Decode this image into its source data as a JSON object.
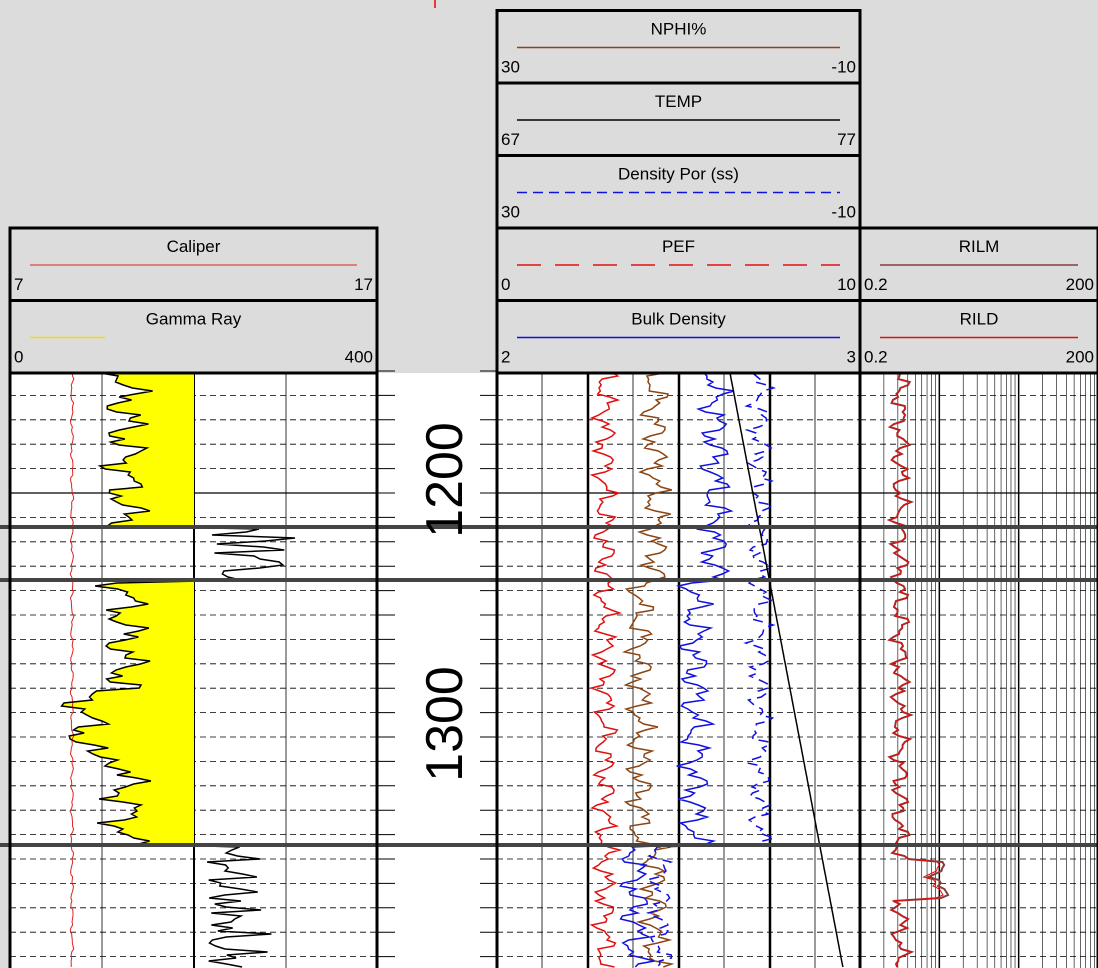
{
  "tracks": [
    {
      "headers": [
        {
          "name": "Caliper",
          "left": "7",
          "right": "17"
        },
        {
          "name": "Gamma Ray",
          "left": "0",
          "right": "400"
        }
      ]
    },
    {
      "headers": [
        {
          "name": "NPHI%",
          "left": "30",
          "right": "-10"
        },
        {
          "name": "TEMP",
          "left": "67",
          "right": "77"
        },
        {
          "name": "Density Por (ss)",
          "left": "30",
          "right": "-10"
        },
        {
          "name": "PEF",
          "left": "0",
          "right": "10"
        },
        {
          "name": "Bulk Density",
          "left": "2",
          "right": "3"
        }
      ]
    },
    {
      "headers": [
        {
          "name": "RILM",
          "left": "0.2",
          "right": "200"
        },
        {
          "name": "RILD",
          "left": "0.2",
          "right": "200"
        }
      ]
    }
  ],
  "depth_labels": [
    "1200",
    "1300"
  ]
}
